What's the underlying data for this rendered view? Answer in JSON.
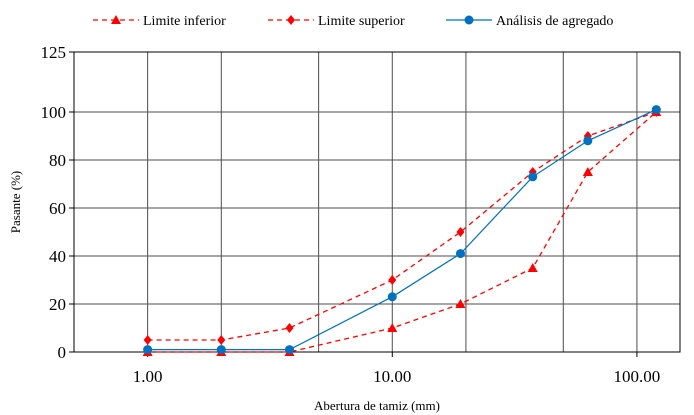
{
  "chart_data": {
    "type": "line",
    "title": "",
    "xlabel": "Abertura de tamiz (mm)",
    "ylabel": "Pasante (%)",
    "x_scale": "log",
    "xlim": [
      0.5,
      150
    ],
    "ylim": [
      0,
      125
    ],
    "x_ticks": [
      1,
      10,
      100
    ],
    "x_tick_labels": [
      "1.00",
      "10.00",
      "100.00"
    ],
    "y_ticks": [
      0,
      20,
      40,
      60,
      80,
      100,
      125
    ],
    "y_tick_labels": [
      "0",
      "20",
      "40",
      "60",
      "80",
      "100",
      "125"
    ],
    "grid": true,
    "legend_position": "top",
    "series": [
      {
        "name": "Limite  inferior",
        "color": "#ff0000",
        "line_style": "dashed",
        "marker": "triangle",
        "x": [
          1.0,
          2.0,
          3.8,
          10.0,
          19.0,
          37.5,
          63.0,
          120.0
        ],
        "y": [
          0,
          0,
          0,
          10,
          20,
          35,
          75,
          100
        ]
      },
      {
        "name": "Limite  superior",
        "color": "#ff0000",
        "line_style": "dashed",
        "marker": "diamond",
        "x": [
          1.0,
          2.0,
          3.8,
          10.0,
          19.0,
          37.5,
          63.0,
          120.0
        ],
        "y": [
          5,
          5,
          10,
          30,
          50,
          75,
          90,
          100
        ]
      },
      {
        "name": "Análisis de agregado",
        "color": "#0070c0",
        "line_style": "solid",
        "marker": "circle",
        "x": [
          1.0,
          2.0,
          3.8,
          10.0,
          19.0,
          37.5,
          63.0,
          120.0
        ],
        "y": [
          1,
          1,
          1,
          23,
          41,
          73,
          88,
          101
        ]
      }
    ]
  }
}
